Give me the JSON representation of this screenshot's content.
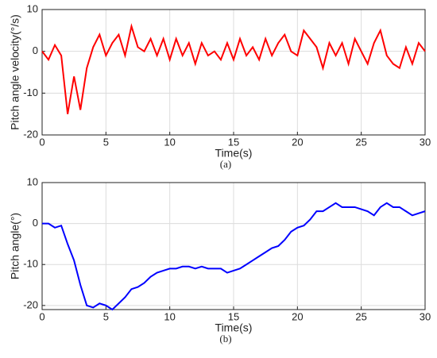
{
  "chart_data": [
    {
      "type": "line",
      "ylabel": "Pitch angle velocity(°/s)",
      "xlabel": "Time(s)",
      "caption": "(a)",
      "color": "#ff0000",
      "x": [
        0,
        0.5,
        1,
        1.5,
        2,
        2.5,
        3,
        3.5,
        4,
        4.5,
        5,
        5.5,
        6,
        6.5,
        7,
        7.5,
        8,
        8.5,
        9,
        9.5,
        10,
        10.5,
        11,
        11.5,
        12,
        12.5,
        13,
        13.5,
        14,
        14.5,
        15,
        15.5,
        16,
        16.5,
        17,
        17.5,
        18,
        18.5,
        19,
        19.5,
        20,
        20.5,
        21,
        21.5,
        22,
        22.5,
        23,
        23.5,
        24,
        24.5,
        25,
        25.5,
        26,
        26.5,
        27,
        27.5,
        28,
        28.5,
        29,
        29.5,
        30
      ],
      "values": [
        0,
        -2,
        1.5,
        -1,
        -15,
        -6,
        -14,
        -4,
        1,
        4,
        -1,
        2,
        4,
        -1,
        6,
        1,
        0,
        3,
        -1,
        3,
        -2,
        3,
        -1,
        2,
        -3,
        2,
        -1,
        0,
        -2,
        2,
        -2,
        3,
        -1,
        1,
        -2,
        3,
        -1,
        2,
        4,
        0,
        -1,
        5,
        3,
        1,
        -4,
        2,
        -1,
        2,
        -3,
        3,
        0,
        -3,
        2,
        5,
        -1,
        -3,
        -4,
        1,
        -3,
        2,
        0
      ],
      "xlim": [
        0,
        30
      ],
      "xticks": [
        0,
        5,
        10,
        15,
        20,
        25,
        30
      ],
      "ylim": [
        -20,
        10
      ],
      "yticks": [
        -20,
        -10,
        0,
        10
      ],
      "grid": true
    },
    {
      "type": "line",
      "ylabel": "Pitch angle(°)",
      "xlabel": "Time(s)",
      "caption": "(b)",
      "color": "#0000ff",
      "x": [
        0,
        0.5,
        1,
        1.5,
        2,
        2.5,
        3,
        3.5,
        4,
        4.5,
        5,
        5.5,
        6,
        6.5,
        7,
        7.5,
        8,
        8.5,
        9,
        9.5,
        10,
        10.5,
        11,
        11.5,
        12,
        12.5,
        13,
        13.5,
        14,
        14.5,
        15,
        15.5,
        16,
        16.5,
        17,
        17.5,
        18,
        18.5,
        19,
        19.5,
        20,
        20.5,
        21,
        21.5,
        22,
        22.5,
        23,
        23.5,
        24,
        24.5,
        25,
        25.5,
        26,
        26.5,
        27,
        27.5,
        28,
        28.5,
        29,
        29.5,
        30
      ],
      "values": [
        0,
        0,
        -1,
        -0.5,
        -5,
        -9,
        -15,
        -20,
        -20.5,
        -19.5,
        -20,
        -21,
        -19.5,
        -18,
        -16,
        -15.5,
        -14.5,
        -13,
        -12,
        -11.5,
        -11,
        -11,
        -10.5,
        -10.5,
        -11,
        -10.5,
        -11,
        -11,
        -11,
        -12,
        -11.5,
        -11,
        -10,
        -9,
        -8,
        -7,
        -6,
        -5.5,
        -4,
        -2,
        -1,
        -0.5,
        1,
        3,
        3,
        4,
        5,
        4,
        4,
        4,
        3.5,
        3,
        2,
        4,
        5,
        4,
        4,
        3,
        2,
        2.5,
        3
      ],
      "xlim": [
        0,
        30
      ],
      "xticks": [
        0,
        5,
        10,
        15,
        20,
        25,
        30
      ],
      "ylim": [
        -21,
        10
      ],
      "yticks": [
        -20,
        -10,
        0,
        10
      ],
      "grid": true
    }
  ]
}
